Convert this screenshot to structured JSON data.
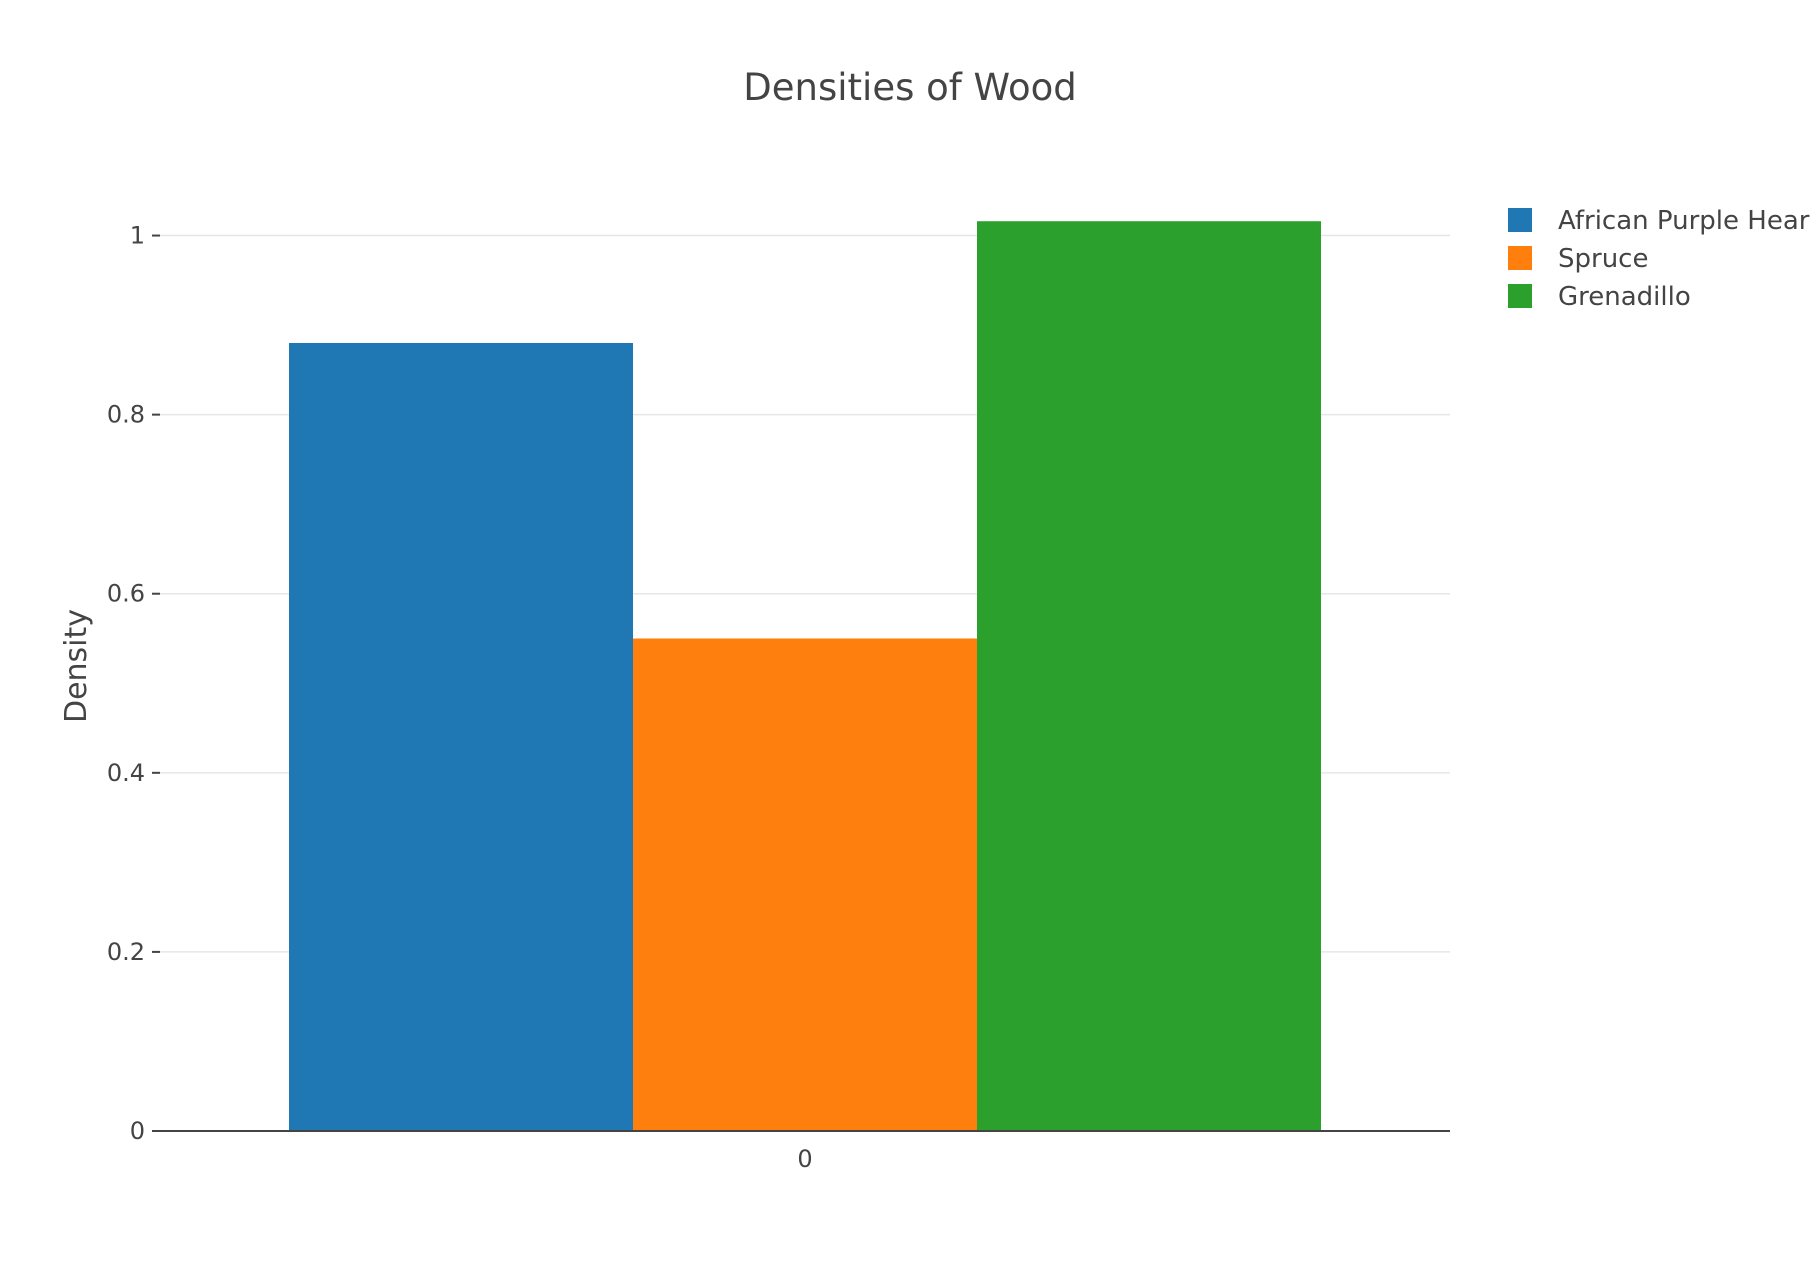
{
  "chart_data": {
    "type": "bar",
    "title": "Densities of Wood",
    "xlabel": "",
    "ylabel": "Density",
    "categories": [
      "0"
    ],
    "series": [
      {
        "name": "African Purple Heart",
        "values": [
          0.88
        ],
        "color": "#1f77b4"
      },
      {
        "name": "Spruce",
        "values": [
          0.55
        ],
        "color": "#ff7f0e"
      },
      {
        "name": "Grenadillo",
        "values": [
          1.016
        ],
        "color": "#2ca02c"
      }
    ],
    "ylim": [
      0,
      1.1
    ],
    "yticks": [
      0,
      0.2,
      0.4,
      0.6,
      0.8,
      1
    ],
    "ytick_labels": [
      "0",
      "0.2",
      "0.4",
      "0.6",
      "0.8",
      "1"
    ],
    "grid": true,
    "legend_position": "top-right"
  }
}
